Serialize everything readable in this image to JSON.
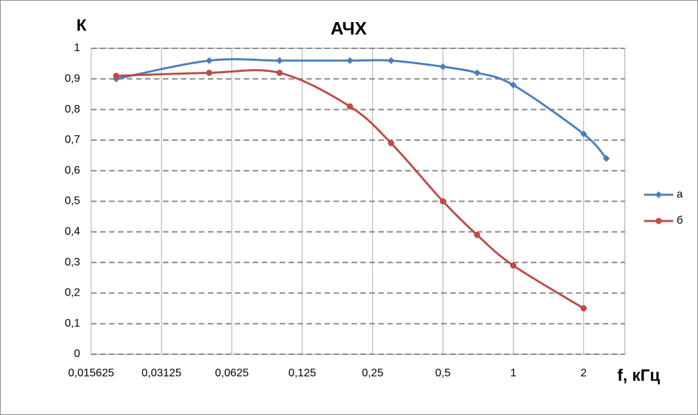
{
  "chart_data": {
    "type": "line",
    "title": "АЧХ",
    "y_label": "К",
    "x_label": "f, кГц",
    "x_log_base": 2,
    "grid": true,
    "xlim": [
      0.015625,
      3
    ],
    "xticks": [
      {
        "value": 0.015625,
        "label": "0,015625"
      },
      {
        "value": 0.03125,
        "label": "0,03125"
      },
      {
        "value": 0.0625,
        "label": "0,0625"
      },
      {
        "value": 0.125,
        "label": "0,125"
      },
      {
        "value": 0.25,
        "label": "0,25"
      },
      {
        "value": 0.5,
        "label": "0,5"
      },
      1,
      2
    ],
    "ylim": [
      0,
      1
    ],
    "yticks": [
      0,
      {
        "value": 0.1,
        "label": "0,1"
      },
      {
        "value": 0.2,
        "label": "0,2"
      },
      {
        "value": 0.3,
        "label": "0,3"
      },
      {
        "value": 0.4,
        "label": "0,4"
      },
      {
        "value": 0.5,
        "label": "0,5"
      },
      {
        "value": 0.6,
        "label": "0,6"
      },
      {
        "value": 0.7,
        "label": "0,7"
      },
      {
        "value": 0.8,
        "label": "0,8"
      },
      {
        "value": 0.9,
        "label": "0,9"
      },
      1
    ],
    "series": [
      {
        "name": "а",
        "color": "#4a7ebb",
        "marker": "diamond",
        "x": [
          0.02,
          0.05,
          0.1,
          0.2,
          0.3,
          0.5,
          0.7,
          1,
          2,
          2.5
        ],
        "values": [
          0.9,
          0.96,
          0.96,
          0.96,
          0.96,
          0.94,
          0.92,
          0.88,
          0.72,
          0.64
        ]
      },
      {
        "name": "б",
        "color": "#be4b48",
        "marker": "circle",
        "x": [
          0.02,
          0.05,
          0.1,
          0.2,
          0.3,
          0.5,
          0.7,
          1,
          2
        ],
        "values": [
          0.91,
          0.92,
          0.92,
          0.81,
          0.69,
          0.5,
          0.39,
          0.29,
          0.15
        ]
      }
    ]
  }
}
